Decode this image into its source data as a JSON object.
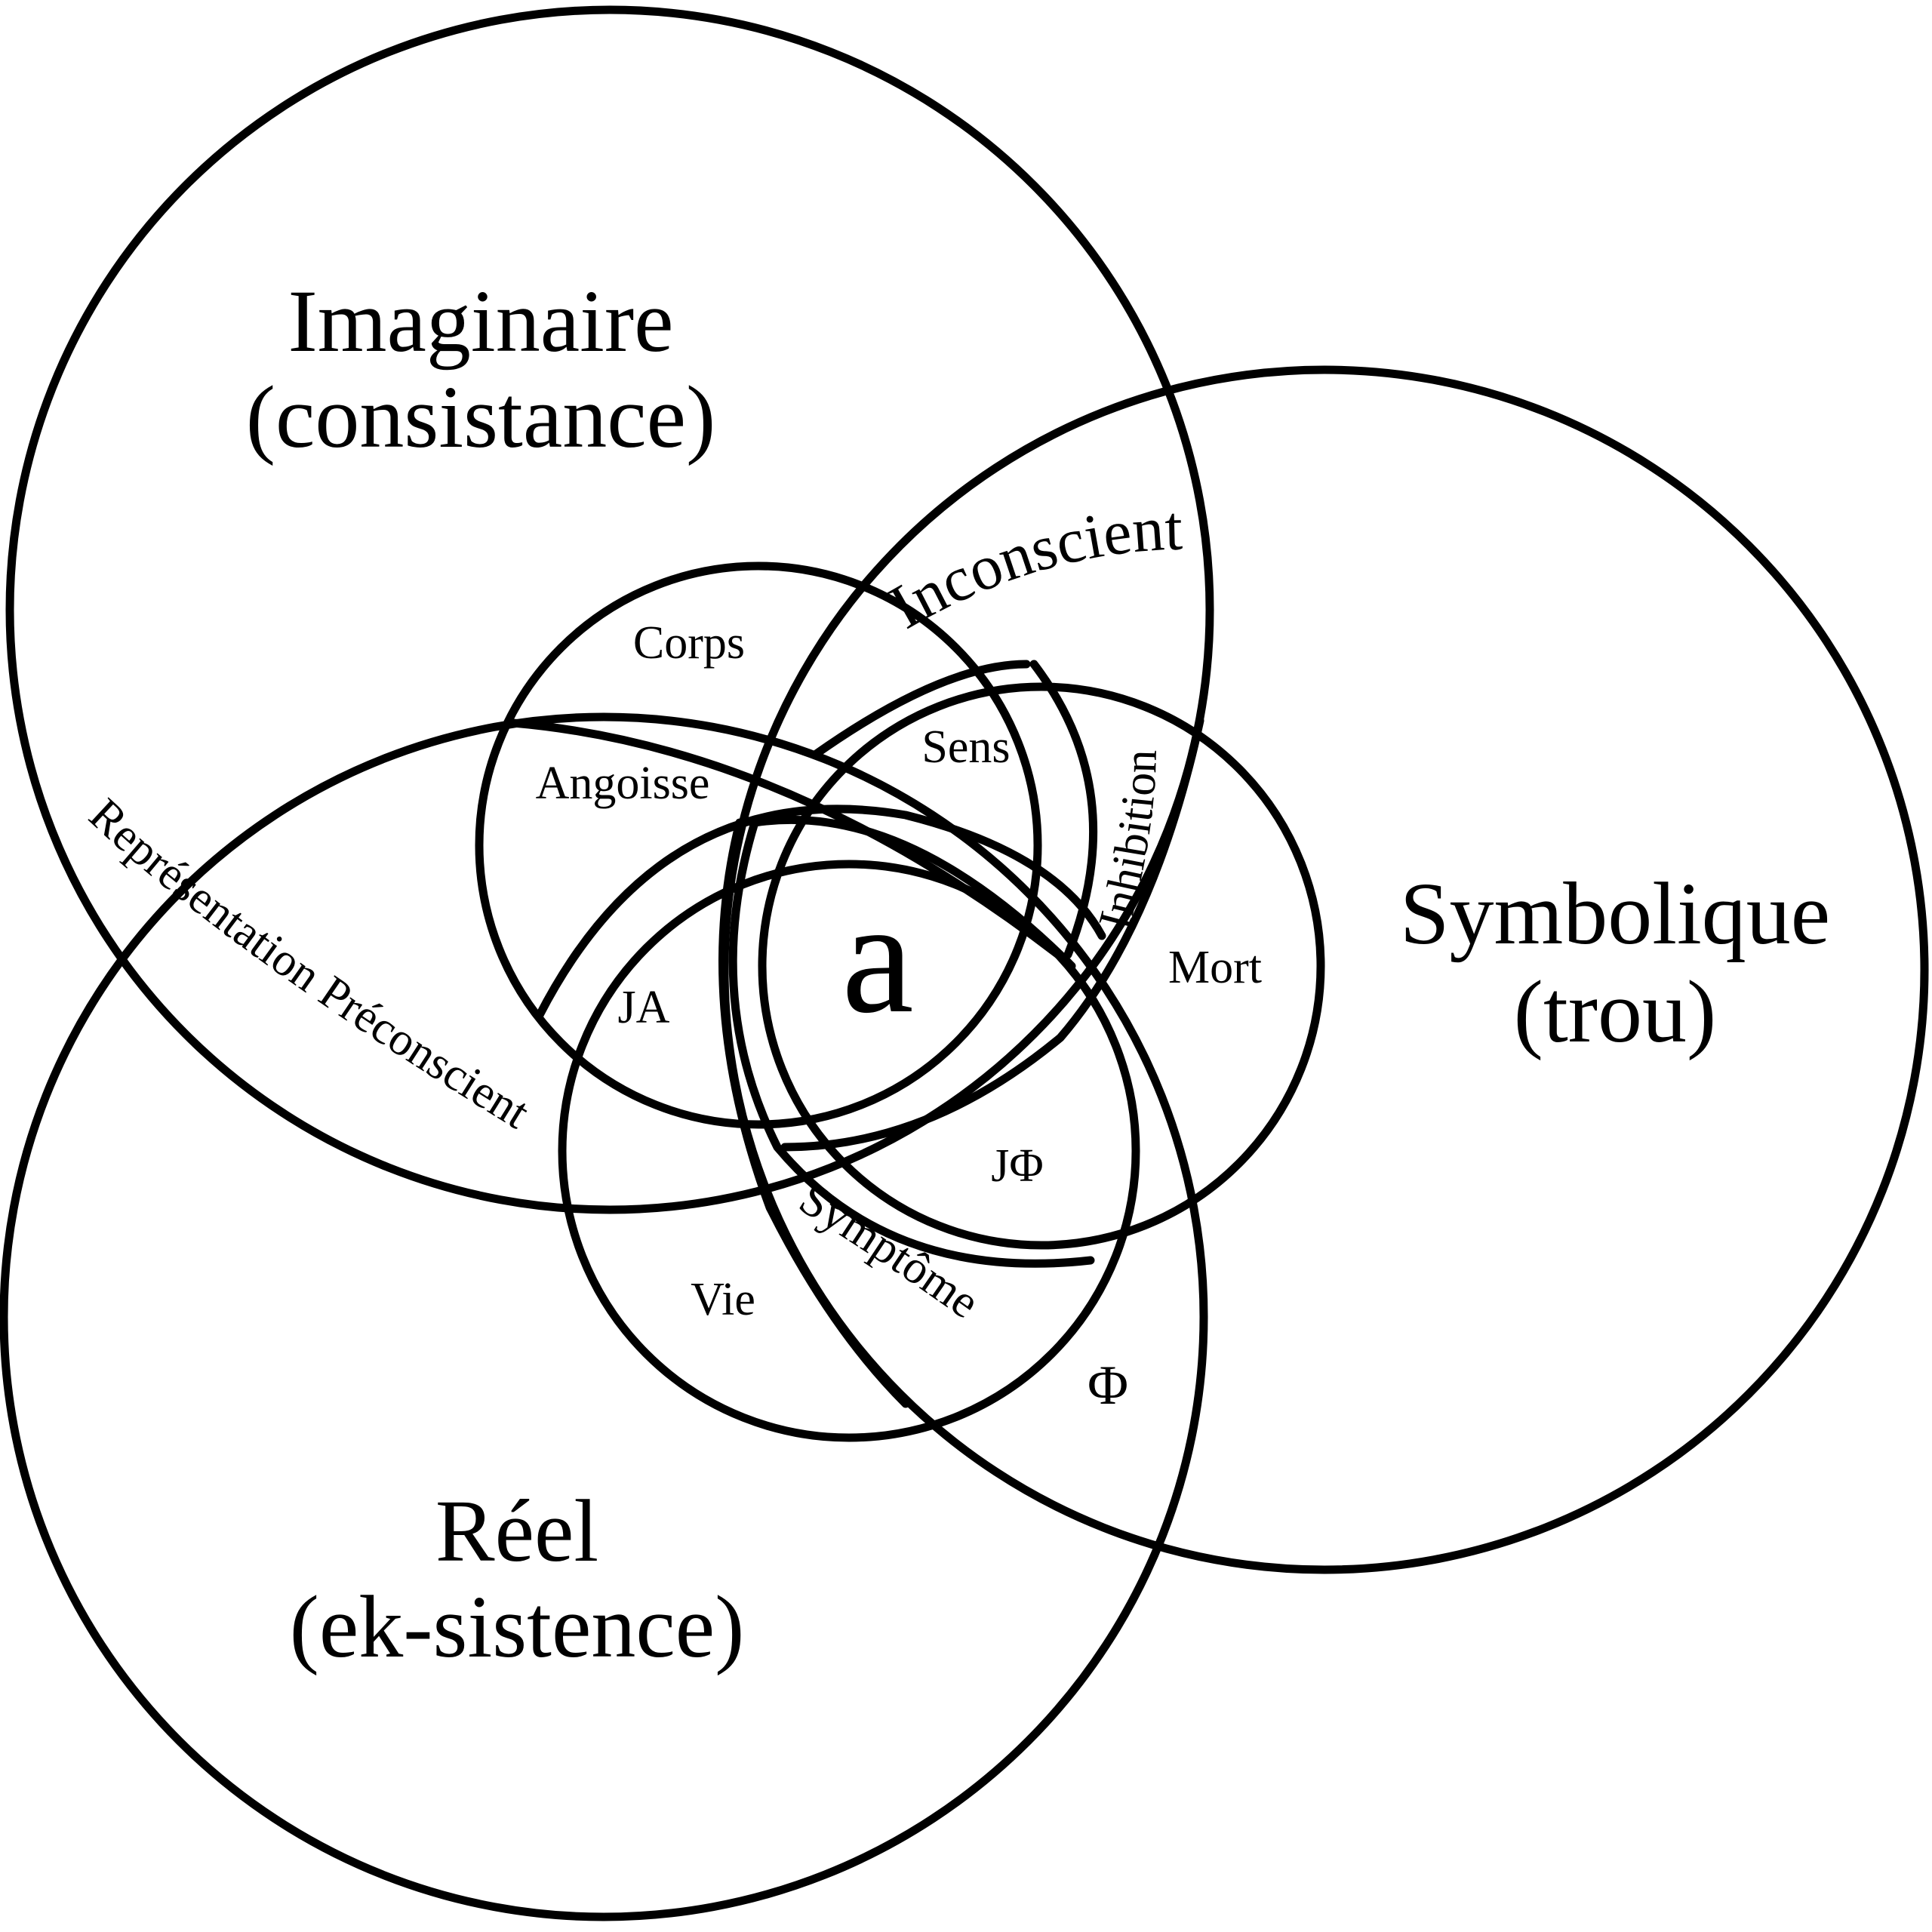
{
  "rings": {
    "imaginaire": {
      "title": "Imaginaire",
      "subtitle": "(consistance)"
    },
    "symbolique": {
      "title": "Symbolique",
      "subtitle": "(trou)"
    },
    "reel": {
      "title": "Réel",
      "subtitle": "(ek-sistence)"
    }
  },
  "bands": {
    "inconscient": "Inconscient",
    "representation": "Représentation Préconscient",
    "inhibition": "Inhibition",
    "symptome": "Symptôme",
    "angoisse": "Angoisse"
  },
  "zones": {
    "corps": "Corps",
    "sens": "Sens",
    "mort": "Mort",
    "vie": "Vie",
    "ja": "JA",
    "jphi": "JΦ",
    "phi": "Φ",
    "center": "a"
  }
}
